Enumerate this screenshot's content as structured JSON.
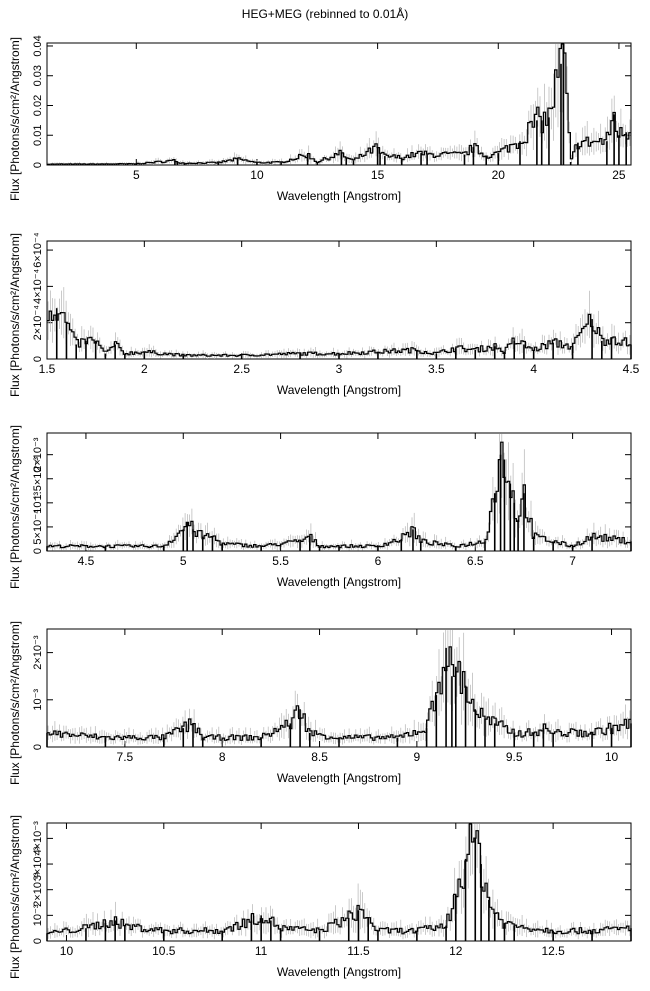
{
  "title": "HEG+MEG (rebinned to 0.01Å)",
  "chart_data": [
    {
      "type": "line",
      "xlabel": "Wavelength [Angstrom]",
      "ylabel": "Flux [Photons/s/cm²/Angstrom]",
      "xlim": [
        1.3,
        25.5
      ],
      "ylim": [
        0,
        0.041
      ],
      "xticks": [
        5,
        10,
        15,
        20,
        25
      ],
      "xtick_labels": [
        "5",
        "10",
        "15",
        "20",
        "25"
      ],
      "yticks": [
        0,
        0.01,
        0.02,
        0.03,
        0.04
      ],
      "ytick_labels": [
        "0",
        "0.01",
        "0.02",
        "0.03",
        "0.04"
      ],
      "series": [
        {
          "x": [
            1.5,
            3,
            5,
            6.6,
            6.7,
            7,
            8.4,
            9.2,
            10,
            11,
            12.1,
            12.5,
            13.5,
            13.7,
            14,
            15,
            15.1,
            15.3,
            16,
            16.8,
            17.05,
            18.6,
            18.97,
            19.5,
            20,
            20.9,
            21.6,
            21.8,
            22.1,
            22.6,
            22.7,
            23,
            23.3,
            24.5,
            24.8,
            25,
            25.3
          ],
          "y": [
            0.0003,
            0.0003,
            0.0004,
            0.0015,
            0.001,
            0.0006,
            0.0008,
            0.002,
            0.0008,
            0.0009,
            0.0035,
            0.001,
            0.004,
            0.0025,
            0.0015,
            0.006,
            0.004,
            0.003,
            0.0025,
            0.004,
            0.0035,
            0.0035,
            0.006,
            0.003,
            0.004,
            0.008,
            0.015,
            0.015,
            0.016,
            0.034,
            0.041,
            0.001,
            0.0075,
            0.008,
            0.017,
            0.01,
            0.011
          ]
        }
      ]
    },
    {
      "type": "line",
      "xlabel": "Wavelength [Angstrom]",
      "ylabel": "Flux [Photons/s/cm²/Angstrom]",
      "xlim": [
        1.5,
        4.5
      ],
      "ylim": [
        0,
        0.00065
      ],
      "xticks": [
        1.5,
        2,
        2.5,
        3,
        3.5,
        4,
        4.5
      ],
      "xtick_labels": [
        "1.5",
        "2",
        "2.5",
        "3",
        "3.5",
        "4",
        "4.5"
      ],
      "yticks": [
        0,
        0.0002,
        0.0004,
        0.0006
      ],
      "ytick_labels": [
        "0",
        "2×10⁻⁴",
        "4×10⁻⁴",
        "6×10⁻⁴"
      ],
      "series": [
        {
          "x": [
            1.55,
            1.6,
            1.65,
            1.7,
            1.75,
            1.8,
            1.85,
            1.9,
            2,
            2.2,
            2.5,
            2.8,
            3.0,
            3.2,
            3.4,
            3.5,
            3.6,
            3.7,
            3.8,
            3.85,
            3.9,
            3.95,
            4.0,
            4.1,
            4.2,
            4.3,
            4.35,
            4.4,
            4.5
          ],
          "y": [
            0.00028,
            0.0002,
            8e-05,
            0.0001,
            0.0001,
            3e-05,
            8e-05,
            3e-05,
            4e-05,
            2e-05,
            2e-05,
            3e-05,
            3e-05,
            4e-05,
            5e-05,
            3e-05,
            6e-05,
            5e-05,
            7e-05,
            4e-05,
            0.0001,
            8e-05,
            5e-05,
            9e-05,
            7e-05,
            0.00022,
            0.0001,
            0.00012,
            8e-05
          ]
        }
      ]
    },
    {
      "type": "line",
      "xlabel": "Wavelength [Angstrom]",
      "ylabel": "Flux [Photons/s/cm²/Angstrom]",
      "xlim": [
        4.3,
        7.3
      ],
      "ylim": [
        0,
        0.00245
      ],
      "xticks": [
        4.5,
        5,
        5.5,
        6,
        6.5,
        7
      ],
      "xtick_labels": [
        "4.5",
        "5",
        "5.5",
        "6",
        "6.5",
        "7"
      ],
      "yticks": [
        0,
        0.0005,
        0.001,
        0.0015,
        0.002
      ],
      "ytick_labels": [
        "0",
        "5×10⁻⁴",
        "10⁻³",
        "1.5×10⁻³",
        "2×10⁻³"
      ],
      "series": [
        {
          "x": [
            4.3,
            4.6,
            4.9,
            5.0,
            5.02,
            5.05,
            5.1,
            5.15,
            5.2,
            5.4,
            5.6,
            5.65,
            5.7,
            5.8,
            6.0,
            6.12,
            6.18,
            6.22,
            6.4,
            6.55,
            6.6,
            6.63,
            6.65,
            6.68,
            6.7,
            6.72,
            6.75,
            6.8,
            6.9,
            7.0,
            7.1,
            7.3
          ],
          "y": [
            0.0001,
            0.0001,
            0.0001,
            0.00045,
            0.0006,
            0.00045,
            0.0003,
            0.0003,
            0.00015,
            0.0001,
            0.0002,
            0.0003,
            0.0001,
            0.0001,
            0.0001,
            0.00025,
            0.00045,
            0.0002,
            0.0001,
            0.0002,
            0.0012,
            0.002,
            0.0019,
            0.0014,
            0.001,
            0.00065,
            0.0012,
            0.0003,
            0.0002,
            0.0001,
            0.0003,
            0.0002
          ]
        }
      ]
    },
    {
      "type": "line",
      "xlabel": "Wavelength [Angstrom]",
      "ylabel": "Flux [Photons/s/cm²/Angstrom]",
      "xlim": [
        7.1,
        10.1
      ],
      "ylim": [
        0,
        0.0025
      ],
      "xticks": [
        7.5,
        8,
        8.5,
        9,
        9.5,
        10
      ],
      "xtick_labels": [
        "7.5",
        "8",
        "8.5",
        "9",
        "9.5",
        "10"
      ],
      "yticks": [
        0,
        0.001,
        0.002
      ],
      "ytick_labels": [
        "0",
        "10⁻³",
        "2×10⁻³"
      ],
      "series": [
        {
          "x": [
            7.1,
            7.4,
            7.7,
            7.8,
            7.85,
            7.9,
            8.2,
            8.35,
            8.4,
            8.45,
            8.6,
            8.9,
            9.05,
            9.1,
            9.15,
            9.18,
            9.2,
            9.25,
            9.3,
            9.35,
            9.4,
            9.5,
            9.6,
            9.65,
            9.7,
            9.9,
            10.0,
            10.1
          ],
          "y": [
            0.0003,
            0.0002,
            0.0002,
            0.0004,
            0.0005,
            0.0002,
            0.0002,
            0.0005,
            0.0008,
            0.0003,
            0.0002,
            0.0002,
            0.0004,
            0.0011,
            0.0021,
            0.0015,
            0.0017,
            0.0013,
            0.0008,
            0.0006,
            0.0005,
            0.0003,
            0.0003,
            0.0004,
            0.0003,
            0.0003,
            0.0004,
            0.0005
          ]
        }
      ]
    },
    {
      "type": "line",
      "xlabel": "Wavelength [Angstrom]",
      "ylabel": "Flux [Photons/s/cm²/Angstrom]",
      "xlim": [
        9.9,
        12.9
      ],
      "ylim": [
        0,
        0.0046
      ],
      "xticks": [
        10,
        10.5,
        11,
        11.5,
        12,
        12.5
      ],
      "xtick_labels": [
        "10",
        "10.5",
        "11",
        "11.5",
        "12",
        "12.5"
      ],
      "yticks": [
        0,
        0.001,
        0.002,
        0.003,
        0.004
      ],
      "ytick_labels": [
        "0",
        "10⁻³",
        "2×10⁻³",
        "3×10⁻³",
        "4×10⁻³"
      ],
      "series": [
        {
          "x": [
            9.9,
            10.1,
            10.2,
            10.25,
            10.3,
            10.5,
            10.8,
            10.95,
            11.0,
            11.05,
            11.1,
            11.3,
            11.45,
            11.5,
            11.55,
            11.6,
            11.8,
            11.95,
            12.0,
            12.05,
            12.1,
            12.13,
            12.17,
            12.2,
            12.25,
            12.3,
            12.5,
            12.7,
            12.9
          ],
          "y": [
            0.0003,
            0.0005,
            0.0007,
            0.0008,
            0.0006,
            0.0004,
            0.0004,
            0.0008,
            0.001,
            0.0008,
            0.0005,
            0.0004,
            0.0009,
            0.0012,
            0.0009,
            0.0004,
            0.0004,
            0.0006,
            0.0018,
            0.0032,
            0.004,
            0.003,
            0.0016,
            0.0011,
            0.0007,
            0.0006,
            0.0004,
            0.0004,
            0.0005
          ]
        }
      ]
    }
  ]
}
